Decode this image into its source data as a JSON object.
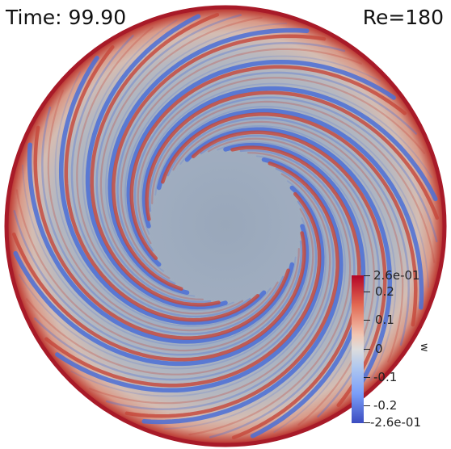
{
  "annotations": {
    "time": "Time: 99.90",
    "reynolds": "Re=180"
  },
  "field": {
    "shape": "circle",
    "pattern": "spiral wave bands (m~12) in outer annulus, calm core",
    "colors": {
      "background_neutral": "#a3b1c4",
      "core": "#9ba9bb",
      "rim": "#b81f2c",
      "band_positive": "#c5463a",
      "band_negative": "#4b6fd6"
    }
  },
  "colorbar": {
    "title": "w",
    "max_label": "2.6e-01",
    "min_label": "-2.6e-01",
    "ticks": [
      "0.2",
      "0.1",
      "0",
      "-0.1",
      "-0.2"
    ],
    "colormap": "cool-warm",
    "colors": {
      "low": "#3b4cc0",
      "mid": "#dddddd",
      "high": "#b40426"
    }
  }
}
